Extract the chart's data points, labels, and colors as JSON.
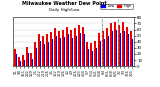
{
  "title": "Milwaukee Weather Dew Point",
  "subtitle": "Daily High/Low",
  "blue_color": "#0000ee",
  "red_color": "#ee0000",
  "bg_color": "#ffffff",
  "plot_bg": "#ffffff",
  "ylim": [
    0,
    80
  ],
  "yticks": [
    0,
    10,
    20,
    30,
    40,
    50,
    60,
    70,
    80
  ],
  "categories": [
    "1/1",
    "1/8",
    "1/15",
    "1/22",
    "1/29",
    "2/5",
    "2/12",
    "2/19",
    "2/26",
    "3/5",
    "3/12",
    "3/19",
    "3/26",
    "4/2",
    "4/9",
    "4/16",
    "4/23",
    "4/30",
    "5/7",
    "5/14",
    "5/21",
    "5/28",
    "6/4",
    "6/11",
    "6/18",
    "6/25",
    "7/2",
    "7/9",
    "7/16",
    "7/23"
  ],
  "high_values": [
    28,
    15,
    18,
    32,
    22,
    40,
    52,
    50,
    52,
    56,
    62,
    58,
    60,
    65,
    60,
    62,
    68,
    65,
    40,
    38,
    42,
    55,
    58,
    62,
    70,
    72,
    68,
    72,
    65,
    58
  ],
  "low_values": [
    20,
    8,
    10,
    22,
    12,
    30,
    42,
    36,
    40,
    44,
    50,
    46,
    48,
    52,
    46,
    50,
    55,
    52,
    28,
    25,
    30,
    42,
    45,
    50,
    58,
    60,
    55,
    58,
    52,
    45
  ],
  "vline_positions": [
    21.5,
    25.5
  ],
  "bar_width": 0.42
}
